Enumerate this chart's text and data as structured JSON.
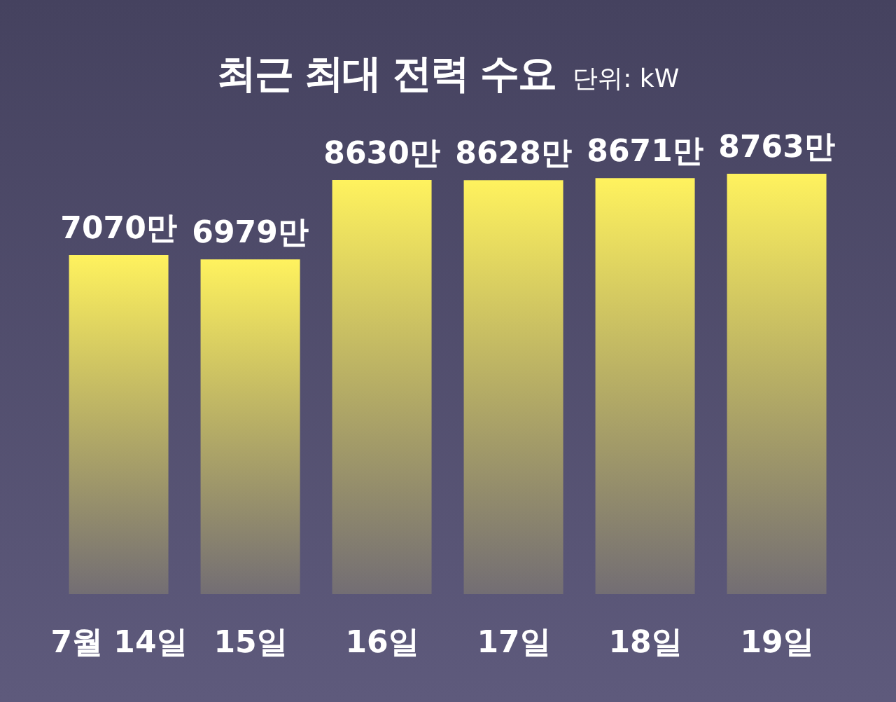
{
  "chart_data": {
    "type": "bar",
    "title": "최근 최대 전력 수요",
    "subtitle": "단위: kW",
    "categories": [
      "7월 14일",
      "15일",
      "16일",
      "17일",
      "18일",
      "19일"
    ],
    "values": [
      7070,
      6979,
      8630,
      8628,
      8671,
      8763
    ],
    "value_labels": [
      "7070만",
      "6979만",
      "8630만",
      "8628만",
      "8671만",
      "8763만"
    ],
    "color": "#fff25e"
  }
}
